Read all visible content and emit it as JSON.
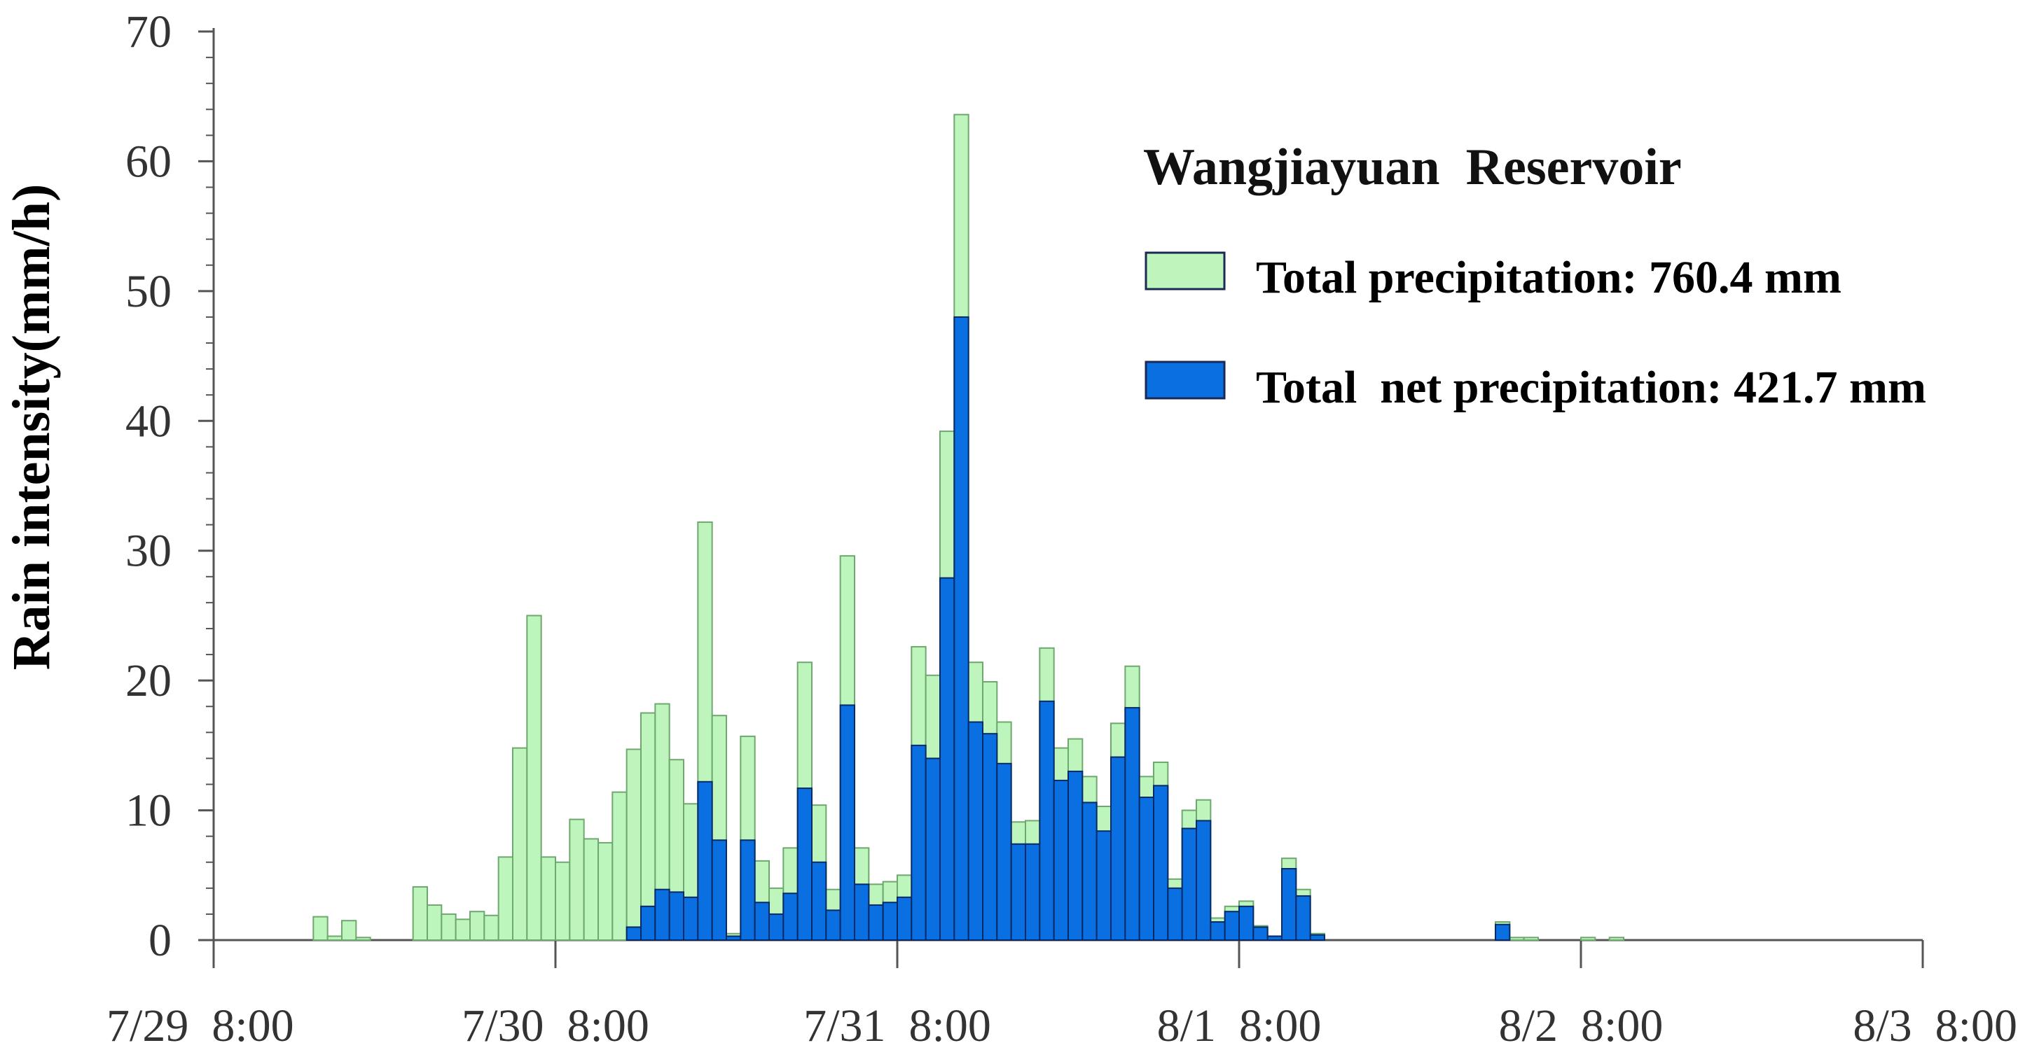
{
  "chart_data": {
    "type": "bar",
    "title": "Wangjiayuan  Reservoir",
    "ylabel": "Rain intensity(mm/h)",
    "xlabel": "",
    "ylim": [
      0,
      70
    ],
    "yticks": [
      0,
      10,
      20,
      30,
      40,
      50,
      60,
      70
    ],
    "x_unit": "hours since 7/29 8:00",
    "x_range": [
      0,
      120
    ],
    "xticks": [
      {
        "hour": 0,
        "label": "7/29  8:00"
      },
      {
        "hour": 24,
        "label": "7/30  8:00"
      },
      {
        "hour": 48,
        "label": "7/31  8:00"
      },
      {
        "hour": 72,
        "label": "8/1  8:00"
      },
      {
        "hour": 96,
        "label": "8/2  8:00"
      },
      {
        "hour": 120,
        "label": "8/3  8:00"
      }
    ],
    "bar_width_hours": 1,
    "start_hour": 7,
    "series": [
      {
        "name": "Total precipitation: 760.4 mm",
        "color": "#bdf5bd",
        "stroke": "#6fa86f",
        "values": [
          1.8,
          0.3,
          1.5,
          0.2,
          0,
          0,
          0,
          4.1,
          2.7,
          2.0,
          1.6,
          2.2,
          1.9,
          6.4,
          14.8,
          25.0,
          6.4,
          6.0,
          9.3,
          7.8,
          7.5,
          11.4,
          14.7,
          17.5,
          18.2,
          13.9,
          10.5,
          32.2,
          17.3,
          0.5,
          15.7,
          6.1,
          4.0,
          7.1,
          21.4,
          10.4,
          3.9,
          29.6,
          7.1,
          4.3,
          4.5,
          5.0,
          22.6,
          20.4,
          39.2,
          63.6,
          21.4,
          19.9,
          16.8,
          9.1,
          9.2,
          22.5,
          14.8,
          15.5,
          12.6,
          10.3,
          16.7,
          21.1,
          12.6,
          13.7,
          4.7,
          10.0,
          10.8,
          1.7,
          2.6,
          3.0,
          1.1,
          0.3,
          6.3,
          3.9,
          0.5,
          0,
          0,
          0,
          0,
          0,
          0,
          0,
          0,
          0,
          0,
          0,
          0,
          1.4,
          0.2,
          0.2,
          0,
          0,
          0,
          0.2,
          0,
          0.2
        ]
      },
      {
        "name": "Total  net precipitation: 421.7 mm",
        "color": "#0a6fe0",
        "stroke": "#062a66",
        "values": [
          0,
          0,
          0,
          0,
          0,
          0,
          0,
          0,
          0,
          0,
          0,
          0,
          0,
          0,
          0,
          0,
          0,
          0,
          0,
          0,
          0,
          0,
          1.0,
          2.6,
          3.9,
          3.7,
          3.3,
          12.2,
          7.7,
          0.3,
          7.7,
          2.9,
          2.0,
          3.6,
          11.7,
          6.0,
          2.3,
          18.1,
          4.3,
          2.7,
          2.9,
          3.3,
          15.0,
          14.0,
          27.9,
          48.0,
          16.8,
          15.9,
          13.6,
          7.4,
          7.4,
          18.4,
          12.3,
          13.0,
          10.6,
          8.4,
          14.1,
          17.9,
          11.0,
          11.9,
          4.0,
          8.6,
          9.2,
          1.4,
          2.2,
          2.6,
          1.0,
          0.3,
          5.5,
          3.4,
          0.4,
          0,
          0,
          0,
          0,
          0,
          0,
          0,
          0,
          0,
          0,
          0,
          0,
          1.2,
          0,
          0,
          0,
          0,
          0,
          0,
          0,
          0
        ]
      }
    ],
    "legend": {
      "position": "top-right",
      "items": [
        {
          "label": "Total precipitation: 760.4 mm",
          "color": "#bdf5bd",
          "stroke": "#1a2a55"
        },
        {
          "label": "Total  net precipitation: 421.7 mm",
          "color": "#0a6fe0",
          "stroke": "#1a2a55"
        }
      ]
    }
  }
}
